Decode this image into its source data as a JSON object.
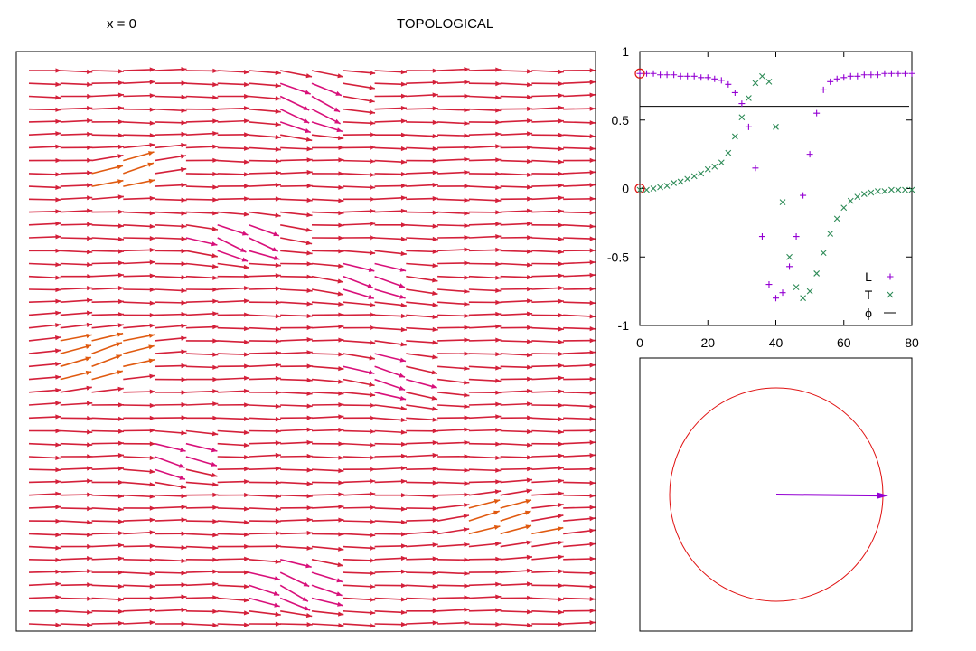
{
  "header": {
    "position_label": "x = 0",
    "title": "TOPOLOGICAL"
  },
  "colors": {
    "arrow_main": "#d4203a",
    "arrow_magenta": "#d8107a",
    "arrow_orange": "#e05a10",
    "series_L": "#9400d3",
    "series_T": "#2e8b57",
    "phi_line": "#000000",
    "circle": "#e01010",
    "phasor": "#9400d3"
  },
  "chart_data": [
    {
      "type": "vector-field",
      "title": "",
      "rows": 44,
      "columns": 18,
      "dominant_direction": "right",
      "note": "rows of predominantly rightward arrows with a localized tilted defect band"
    },
    {
      "type": "scatter",
      "title": "",
      "xlabel": "",
      "ylabel": "",
      "xlim": [
        0,
        80
      ],
      "ylim": [
        -1,
        1
      ],
      "xticks": [
        "0",
        "20",
        "40",
        "60",
        "80"
      ],
      "yticks": [
        "1",
        "0.5",
        "0",
        "-0.5",
        "-1"
      ],
      "grid": false,
      "legend_position": "bottom-right",
      "series": [
        {
          "name": "L",
          "marker": "+",
          "x": [
            0,
            2,
            4,
            6,
            8,
            10,
            12,
            14,
            16,
            18,
            20,
            22,
            24,
            26,
            28,
            30,
            32,
            34,
            36,
            38,
            40,
            42,
            44,
            46,
            48,
            50,
            52,
            54,
            56,
            58,
            60,
            62,
            64,
            66,
            68,
            70,
            72,
            74,
            76,
            78,
            80
          ],
          "y": [
            0.84,
            0.84,
            0.84,
            0.83,
            0.83,
            0.83,
            0.82,
            0.82,
            0.82,
            0.81,
            0.81,
            0.8,
            0.79,
            0.76,
            0.7,
            0.62,
            0.45,
            0.15,
            -0.35,
            -0.7,
            -0.8,
            -0.76,
            -0.57,
            -0.35,
            -0.05,
            0.25,
            0.55,
            0.72,
            0.78,
            0.8,
            0.81,
            0.82,
            0.82,
            0.83,
            0.83,
            0.83,
            0.84,
            0.84,
            0.84,
            0.84,
            0.84
          ]
        },
        {
          "name": "T",
          "marker": "×",
          "x": [
            0,
            2,
            4,
            6,
            8,
            10,
            12,
            14,
            16,
            18,
            20,
            22,
            24,
            26,
            28,
            30,
            32,
            34,
            36,
            38,
            40,
            42,
            44,
            46,
            48,
            50,
            52,
            54,
            56,
            58,
            60,
            62,
            64,
            66,
            68,
            70,
            72,
            74,
            76,
            78,
            80
          ],
          "y": [
            -0.01,
            -0.01,
            0.0,
            0.01,
            0.02,
            0.04,
            0.05,
            0.07,
            0.09,
            0.11,
            0.14,
            0.16,
            0.19,
            0.26,
            0.38,
            0.52,
            0.66,
            0.77,
            0.82,
            0.78,
            0.45,
            -0.1,
            -0.5,
            -0.72,
            -0.8,
            -0.75,
            -0.62,
            -0.47,
            -0.33,
            -0.22,
            -0.14,
            -0.09,
            -0.06,
            -0.04,
            -0.03,
            -0.02,
            -0.02,
            -0.01,
            -0.01,
            -0.01,
            -0.01
          ]
        },
        {
          "name": "ϕ",
          "marker": "line",
          "x": [
            0,
            80
          ],
          "y": [
            0.6,
            0.6
          ]
        }
      ],
      "circled_points": [
        {
          "x": 0,
          "y": 0.84
        },
        {
          "x": 0,
          "y": 0
        }
      ]
    },
    {
      "type": "phasor",
      "title": "",
      "circle_radius": 1,
      "arrow_start": [
        0,
        0
      ],
      "arrow_end": [
        1.05,
        -0.01
      ]
    }
  ]
}
